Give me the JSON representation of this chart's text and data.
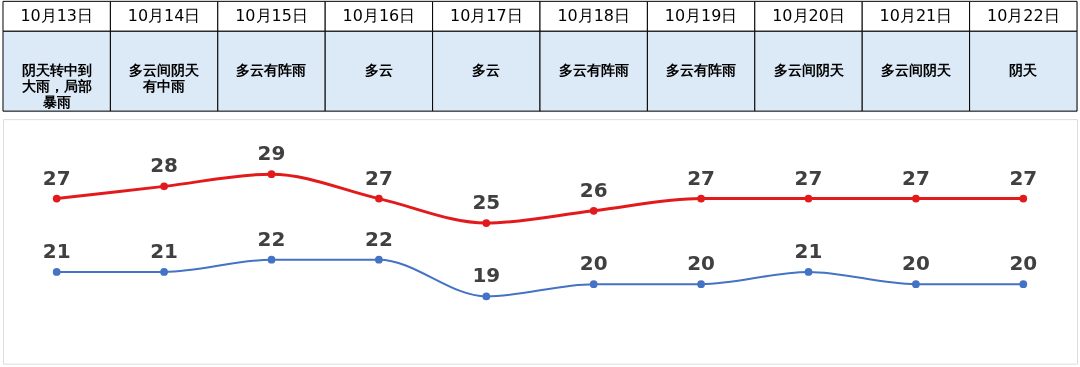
{
  "chart_data": {
    "type": "line",
    "categories": [
      "10月13日",
      "10月14日",
      "10月15日",
      "10月16日",
      "10月17日",
      "10月18日",
      "10月19日",
      "10月20日",
      "10月21日",
      "10月22日"
    ],
    "annotations": [
      "阴天转中到大雨，局部暴雨",
      "多云间阴天有中雨",
      "多云有阵雨",
      "多云",
      "多云",
      "多云有阵雨",
      "多云有阵雨",
      "多云间阴天",
      "多云间阴天",
      "阴天"
    ],
    "series": [
      {
        "color": "#e31a1c",
        "values": [
          27,
          28,
          29,
          27,
          25,
          26,
          27,
          27,
          27,
          27
        ]
      },
      {
        "color": "#4472c4",
        "values": [
          21,
          21,
          22,
          22,
          19,
          20,
          20,
          21,
          20,
          20
        ]
      }
    ],
    "data_labels": true,
    "marker": "circle"
  }
}
